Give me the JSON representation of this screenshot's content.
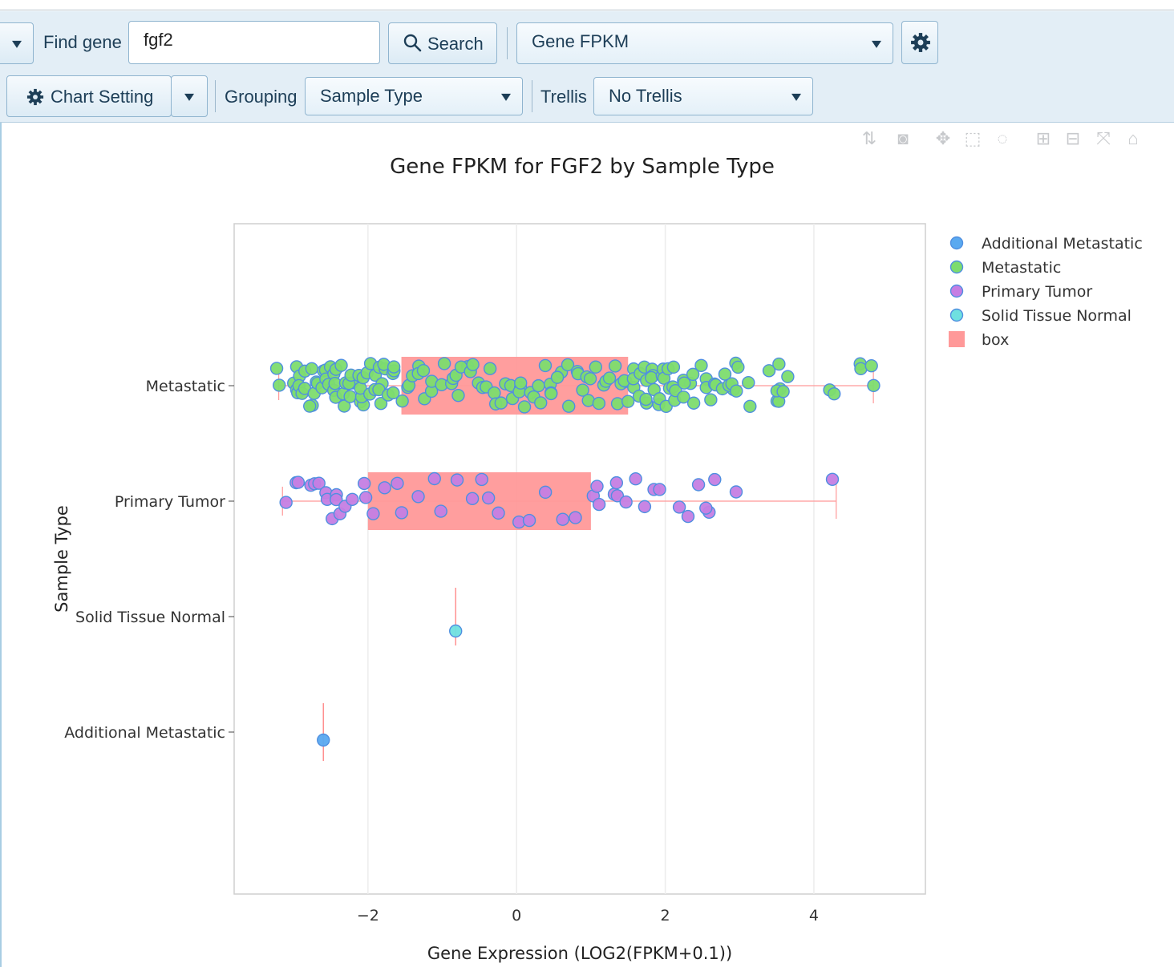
{
  "toolbar": {
    "find_gene_label": "Find gene",
    "gene_input_value": "fgf2",
    "search_label": "Search",
    "measure_select": "Gene FPKM",
    "chart_setting_label": "Chart Setting",
    "grouping_label": "Grouping",
    "grouping_value": "Sample Type",
    "trellis_label": "Trellis",
    "trellis_value": "No Trellis"
  },
  "modebar": [
    "sort-icon",
    "camera-icon",
    "pan-icon",
    "box-select-icon",
    "lasso-icon",
    "zoom-in-icon",
    "zoom-out-icon",
    "autoscale-icon",
    "home-icon"
  ],
  "chart_data": {
    "type": "box",
    "title": "Gene FPKM for FGF2 by Sample Type",
    "xlabel": "Gene Expression (LOG2(FPKM+0.1))",
    "ylabel": "Sample Type",
    "xlim": [
      -3.8,
      5.5
    ],
    "xticks": [
      -2,
      0,
      2,
      4
    ],
    "xtick_labels": [
      "−2",
      "0",
      "2",
      "4"
    ],
    "categories": [
      "Metastatic",
      "Primary Tumor",
      "Solid Tissue Normal",
      "Additional Metastatic"
    ],
    "legend": [
      {
        "name": "Additional Metastatic",
        "color": "#5aa9f0"
      },
      {
        "name": "Metastatic",
        "color": "#7ddc6e"
      },
      {
        "name": "Primary Tumor",
        "color": "#c57ee3"
      },
      {
        "name": "Solid Tissue Normal",
        "color": "#6fe0e0"
      },
      {
        "name": "box",
        "color": "#ff9999"
      }
    ],
    "legend_position": "top-right",
    "boxes": [
      {
        "category": "Metastatic",
        "whisker_low": -3.2,
        "q1": -1.55,
        "q3": 1.5,
        "whisker_high": 4.8
      },
      {
        "category": "Primary Tumor",
        "whisker_low": -3.15,
        "q1": -2.0,
        "q3": 1.0,
        "whisker_high": 4.3
      },
      {
        "category": "Solid Tissue Normal",
        "whisker_low": -0.82,
        "q1": -0.82,
        "q3": -0.82,
        "whisker_high": -0.82
      },
      {
        "category": "Additional Metastatic",
        "whisker_low": -2.6,
        "q1": -2.6,
        "q3": -2.6,
        "whisker_high": -2.6
      }
    ],
    "points": {
      "Metastatic": [
        -3.2,
        -3.0,
        -2.95,
        -2.9,
        -2.85,
        -2.8,
        -2.75,
        -2.7,
        -2.65,
        -2.6,
        -2.55,
        -2.5,
        -2.45,
        -2.4,
        -2.35,
        -2.3,
        -2.25,
        -2.2,
        -2.15,
        -2.1,
        -2.05,
        -2.0,
        -1.95,
        -1.9,
        -1.85,
        -1.8,
        -1.75,
        -1.7,
        -1.6,
        -1.5,
        -1.4,
        -1.3,
        -1.2,
        -1.1,
        -1.0,
        -0.9,
        -0.8,
        -0.7,
        -0.6,
        -0.5,
        -0.4,
        -0.3,
        -0.2,
        -0.1,
        0.0,
        0.1,
        0.2,
        0.3,
        0.4,
        0.5,
        0.6,
        0.7,
        0.8,
        0.9,
        1.0,
        1.1,
        1.2,
        1.3,
        1.4,
        1.5,
        1.55,
        1.6,
        1.65,
        1.7,
        1.75,
        1.8,
        1.85,
        1.9,
        1.95,
        2.0,
        2.05,
        2.1,
        2.15,
        2.2,
        2.3,
        2.4,
        2.5,
        2.6,
        2.7,
        2.8,
        2.9,
        2.95,
        3.0,
        3.1,
        3.45,
        3.5,
        3.55,
        3.6,
        4.25,
        4.65,
        4.8
      ],
      "Primary Tumor": [
        -3.15,
        -2.95,
        -2.9,
        -2.75,
        -2.7,
        -2.65,
        -2.6,
        -2.55,
        -2.5,
        -2.45,
        -2.4,
        -2.35,
        -2.3,
        -2.25,
        -2.05,
        -2.0,
        -1.95,
        -1.8,
        -1.6,
        -1.5,
        -1.3,
        -1.1,
        -1.0,
        -0.8,
        -0.6,
        -0.5,
        -0.4,
        -0.2,
        0.0,
        0.2,
        0.4,
        0.6,
        0.8,
        1.0,
        1.05,
        1.1,
        1.3,
        1.35,
        1.4,
        1.5,
        1.55,
        1.75,
        1.8,
        1.9,
        2.2,
        2.35,
        2.5,
        2.55,
        2.6,
        2.7,
        2.9,
        4.3
      ],
      "Solid Tissue Normal": [
        -0.82
      ],
      "Additional Metastatic": [
        -2.6
      ]
    }
  }
}
